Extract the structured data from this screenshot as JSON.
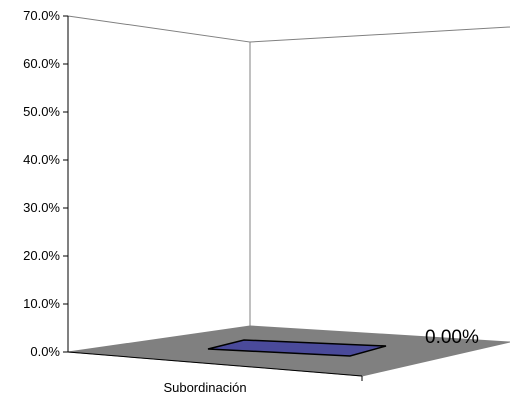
{
  "chart_data": {
    "type": "bar",
    "categories": [
      "Subordinación"
    ],
    "series": [
      {
        "values": [
          0.0
        ]
      }
    ],
    "ylim": [
      0,
      70
    ],
    "y_ticks": [
      "0.0%",
      "10.0%",
      "20.0%",
      "30.0%",
      "40.0%",
      "50.0%",
      "60.0%",
      "70.0%"
    ],
    "data_labels": [
      "0.00%"
    ],
    "grid": false,
    "style": "3d",
    "colors": {
      "floor": "#808080",
      "bar": "#4a4a9a",
      "axis": "#808080"
    }
  }
}
